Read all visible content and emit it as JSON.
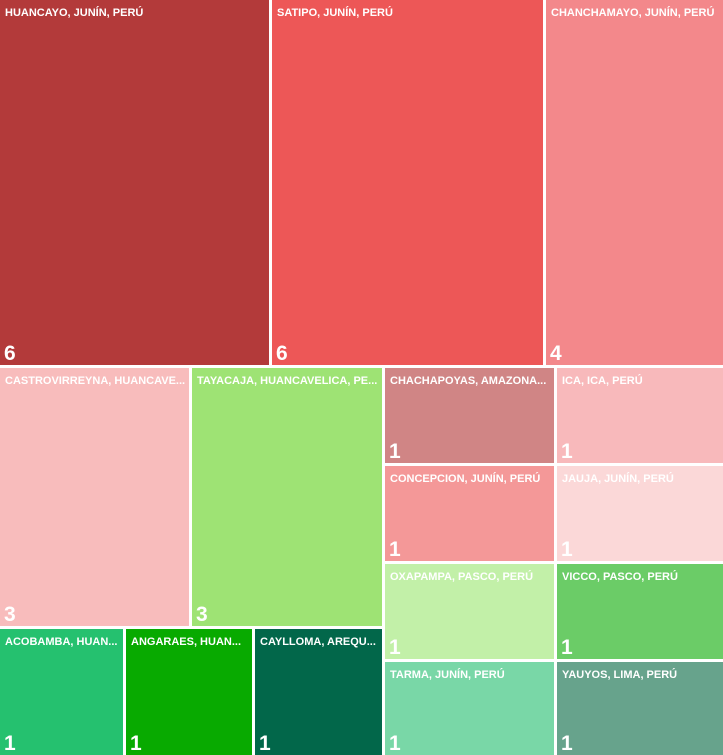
{
  "chart_data": {
    "type": "treemap",
    "categories": [
      "HUANCAYO, JUNÍN, PERÚ",
      "SATIPO, JUNÍN, PERÚ",
      "CHANCHAMAYO, JUNÍN, PERÚ",
      "CASTROVIRREYNA, HUANCAVE...",
      "TAYACAJA, HUANCAVELICA, PE...",
      "CHACHAPOYAS, AMAZONA...",
      "ICA, ICA, PERÚ",
      "CONCEPCION, JUNÍN, PERÚ",
      "JAUJA, JUNÍN, PERÚ",
      "OXAPAMPA, PASCO, PERÚ",
      "VICCO, PASCO, PERÚ",
      "TARMA, JUNÍN, PERÚ",
      "YAUYOS, LIMA, PERÚ",
      "ACOBAMBA, HUAN...",
      "ANGARAES, HUAN...",
      "CAYLLOMA, AREQU..."
    ],
    "values": [
      6,
      6,
      4,
      3,
      3,
      1,
      1,
      1,
      1,
      1,
      1,
      1,
      1,
      1,
      1,
      1
    ],
    "colors": [
      "#b33a3a",
      "#ed5757",
      "#f3888b",
      "#f8bcbc",
      "#9ee374",
      "#d08585",
      "#f8b9bb",
      "#f49898",
      "#fbd8d8",
      "#c2f0a8",
      "#6bcc67",
      "#79d7a7",
      "#67a38c",
      "#25c16f",
      "#08aa00",
      "#02674a"
    ]
  }
}
